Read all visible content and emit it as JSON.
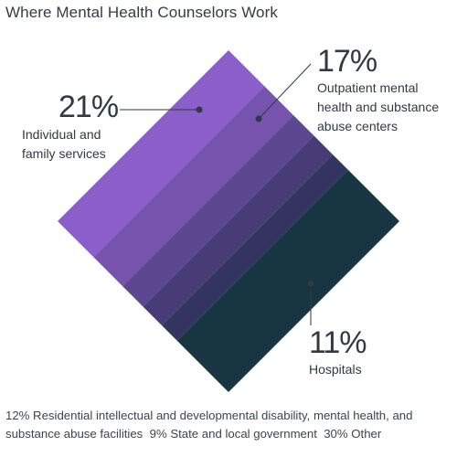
{
  "chart_data": {
    "type": "diamond-stacked",
    "title": "Where Mental Health Counselors Work",
    "segments": [
      {
        "value": 21,
        "pct_label": "21%",
        "label_lines": [
          "Individual and",
          "family services"
        ],
        "color": "#8b5fc9"
      },
      {
        "value": 17,
        "pct_label": "17%",
        "label_lines": [
          "Outpatient mental",
          "health and substance",
          "abuse centers"
        ],
        "color": "#7654ad"
      },
      {
        "value": 12,
        "pct_label": "12%",
        "color": "#5c4891"
      },
      {
        "value": 11,
        "pct_label": "11%",
        "label_lines": [
          "Hospitals"
        ],
        "color": "#473c76"
      },
      {
        "value": 9,
        "pct_label": "9%",
        "color": "#33345f"
      },
      {
        "value": 30,
        "pct_label": "30%",
        "color": "#173642"
      }
    ],
    "footer_items": [
      "12% Residential intellectual and developmental disability, mental health, and substance abuse facilities",
      "9% State and local government",
      "30% Other"
    ]
  }
}
